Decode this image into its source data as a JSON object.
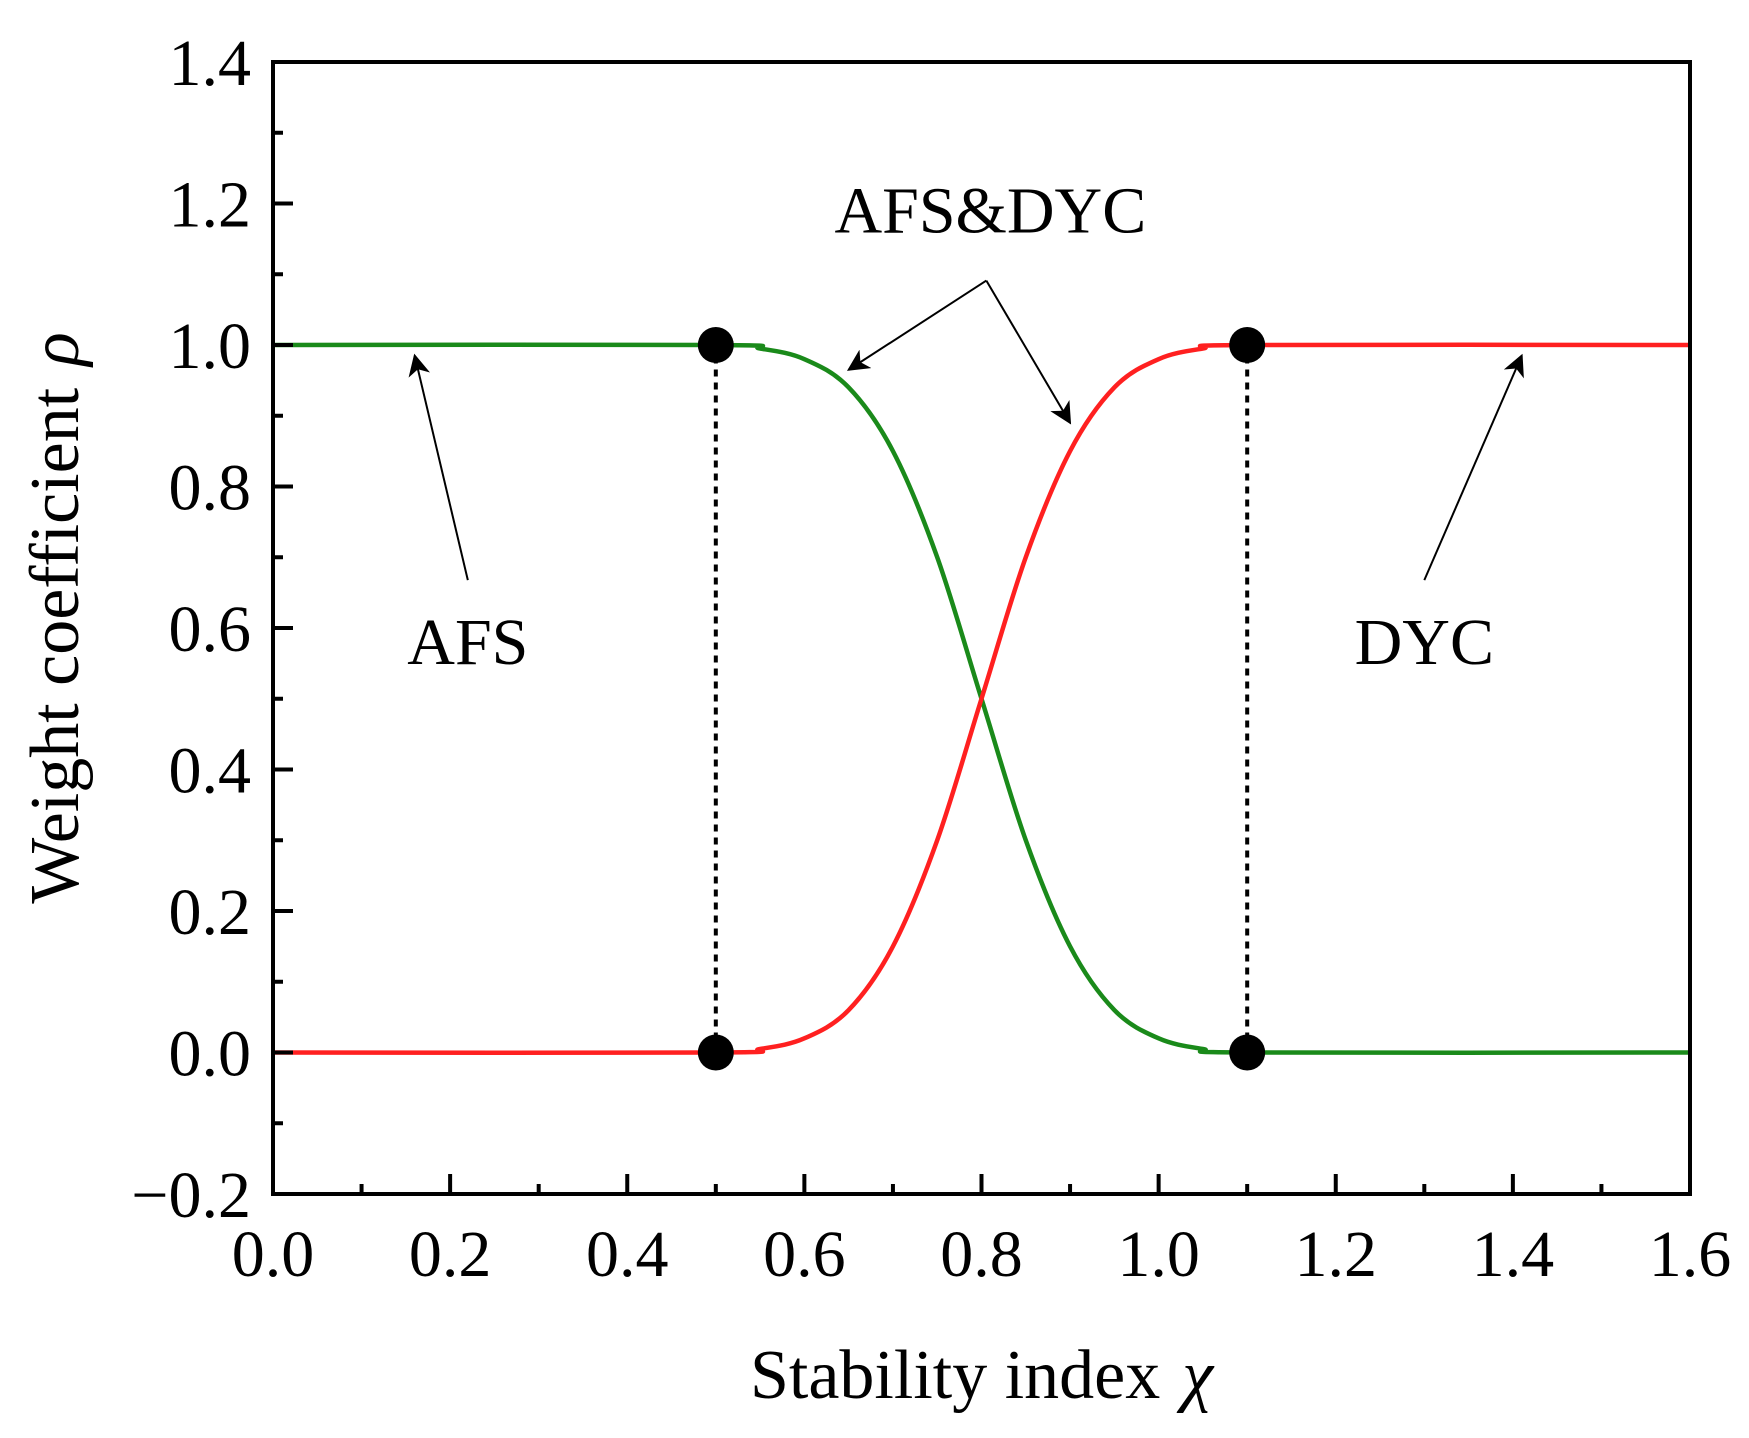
{
  "chart_data": {
    "type": "line",
    "xlabel": "Stability index",
    "xlabel_symbol": "χ",
    "ylabel": "Weight coefficient",
    "ylabel_symbol": "ρ",
    "xlim": [
      0.0,
      1.6
    ],
    "ylim": [
      -0.2,
      1.4
    ],
    "x_ticks": [
      "0.0",
      "0.2",
      "0.4",
      "0.6",
      "0.8",
      "1.0",
      "1.2",
      "1.4",
      "1.6"
    ],
    "y_ticks": [
      "-0.2",
      "0.0",
      "0.2",
      "0.4",
      "0.6",
      "0.8",
      "1.0",
      "1.2",
      "1.4"
    ],
    "grid": false,
    "series": [
      {
        "color": "#1a8a1a",
        "x": [
          0.0,
          0.5,
          0.55,
          0.6,
          0.65,
          0.7,
          0.75,
          0.8,
          0.85,
          0.9,
          0.95,
          1.0,
          1.05,
          1.1,
          1.6
        ],
        "y": [
          1.0,
          1.0,
          0.995,
          0.98,
          0.94,
          0.85,
          0.7,
          0.5,
          0.3,
          0.15,
          0.06,
          0.02,
          0.005,
          0.0,
          0.0
        ]
      },
      {
        "color": "#ff2020",
        "x": [
          0.0,
          0.5,
          0.55,
          0.6,
          0.65,
          0.7,
          0.75,
          0.8,
          0.85,
          0.9,
          0.95,
          1.0,
          1.05,
          1.1,
          1.6
        ],
        "y": [
          0.0,
          0.0,
          0.005,
          0.02,
          0.06,
          0.15,
          0.3,
          0.5,
          0.7,
          0.85,
          0.94,
          0.98,
          0.995,
          1.0,
          1.0
        ]
      }
    ],
    "markers": [
      {
        "x": 0.5,
        "y": 1.0
      },
      {
        "x": 0.5,
        "y": 0.0
      },
      {
        "x": 1.1,
        "y": 1.0
      },
      {
        "x": 1.1,
        "y": 0.0
      }
    ],
    "dashed_lines": [
      {
        "x": 0.5,
        "y1": 0.0,
        "y2": 1.0
      },
      {
        "x": 1.1,
        "y1": 0.0,
        "y2": 1.0
      }
    ],
    "annotations": [
      {
        "text": "AFS",
        "x": 0.22,
        "y": 0.58,
        "arrows": [
          {
            "x": 0.16,
            "y": 0.985
          }
        ]
      },
      {
        "text": "AFS&DYC",
        "x": 0.81,
        "y": 1.19,
        "arrows": [
          {
            "x": 0.65,
            "y": 0.965
          },
          {
            "x": 0.9,
            "y": 0.89
          }
        ]
      },
      {
        "text": "DYC",
        "x": 1.3,
        "y": 0.58,
        "arrows": [
          {
            "x": 1.41,
            "y": 0.985
          }
        ]
      }
    ],
    "colors": {
      "afs": "#1a8a1a",
      "dyc": "#ff2020",
      "axes": "#000000"
    }
  }
}
